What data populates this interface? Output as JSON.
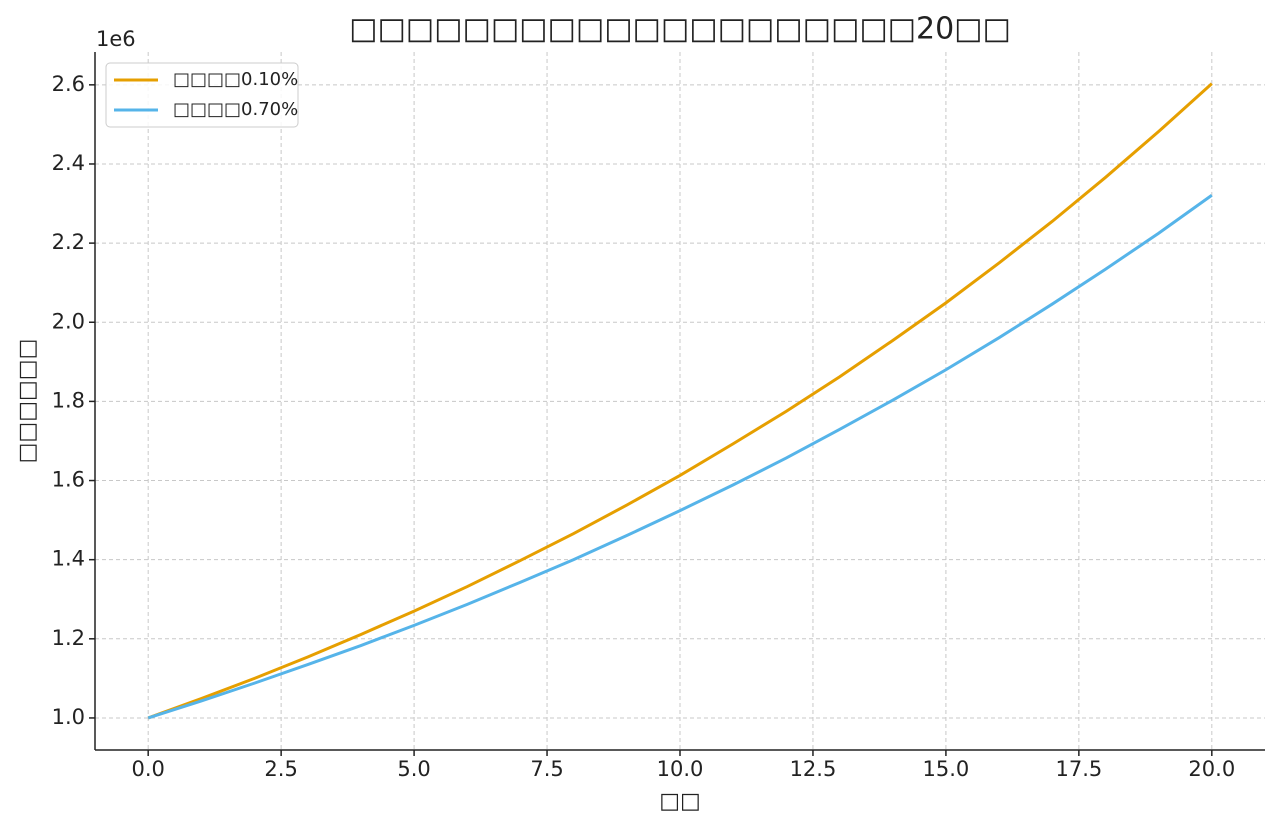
{
  "chart_data": {
    "type": "line",
    "title": "□□□□□□□□□□□□□□□□□□□□20□□",
    "x_label": "□□",
    "y_label": "□□□□□□",
    "y_offset_label": "1e6",
    "x": [
      0,
      1,
      2,
      3,
      4,
      5,
      6,
      7,
      8,
      9,
      10,
      11,
      12,
      13,
      14,
      15,
      16,
      17,
      18,
      19,
      20
    ],
    "series": [
      {
        "name": "□□□□0.10%",
        "color": "#e69f00",
        "values": [
          1.0,
          1.049,
          1.1,
          1.154,
          1.211,
          1.27,
          1.332,
          1.398,
          1.466,
          1.538,
          1.613,
          1.693,
          1.775,
          1.862,
          1.954,
          2.049,
          2.15,
          2.255,
          2.366,
          2.482,
          2.603
        ]
      },
      {
        "name": "□□□□0.70%",
        "color": "#56b4e9",
        "values": [
          1.0,
          1.043,
          1.088,
          1.135,
          1.183,
          1.234,
          1.287,
          1.343,
          1.4,
          1.461,
          1.524,
          1.589,
          1.657,
          1.729,
          1.803,
          1.88,
          1.961,
          2.046,
          2.134,
          2.225,
          2.321
        ]
      }
    ],
    "xlim": [
      -1.0,
      21.0
    ],
    "xticks": [
      {
        "value": 0,
        "label": "0.0"
      },
      2.5,
      {
        "value": 5,
        "label": "5.0"
      },
      7.5,
      {
        "value": 10,
        "label": "10.0"
      },
      12.5,
      {
        "value": 15,
        "label": "15.0"
      },
      17.5,
      {
        "value": 20,
        "label": "20.0"
      }
    ],
    "ylim": [
      0.919,
      2.683
    ],
    "yticks": [
      {
        "value": 1,
        "label": "1.0"
      },
      1.2,
      1.4,
      1.6,
      1.8,
      {
        "value": 2,
        "label": "2.0"
      },
      2.2,
      2.4,
      2.6
    ],
    "grid": true,
    "legend": "upper left"
  }
}
